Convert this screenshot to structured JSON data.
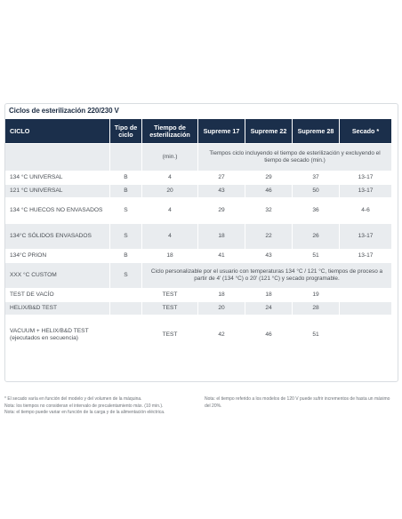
{
  "title": "Ciclos de esterilización 220/230 V",
  "headers": [
    "CICLO",
    "Tipo de ciclo",
    "Tiempo de esterilización",
    "Supreme 17",
    "Supreme 22",
    "Supreme 28",
    "Secado *"
  ],
  "units_row": {
    "min": "(min.)",
    "span_text": "Tiempos ciclo incluyendo el tiempo de esterilización y excluyendo el tiempo de secado (min.)"
  },
  "rows": [
    {
      "ciclo": "134 °C UNIVERSAL",
      "tipo": "B",
      "tiempo": "4",
      "s17": "27",
      "s22": "29",
      "s28": "37",
      "secado": "13-17"
    },
    {
      "ciclo": "121 °C UNIVERSAL",
      "tipo": "B",
      "tiempo": "20",
      "s17": "43",
      "s22": "46",
      "s28": "50",
      "secado": "13-17"
    },
    {
      "ciclo": "134 °C HUECOS NO ENVASADOS",
      "tipo": "S",
      "tiempo": "4",
      "s17": "29",
      "s22": "32",
      "s28": "36",
      "secado": "4-6"
    },
    {
      "ciclo": "134°C SÓLIDOS ENVASADOS",
      "tipo": "S",
      "tiempo": "4",
      "s17": "18",
      "s22": "22",
      "s28": "26",
      "secado": "13-17"
    },
    {
      "ciclo": "134°C PRION",
      "tipo": "B",
      "tiempo": "18",
      "s17": "41",
      "s22": "43",
      "s28": "51",
      "secado": "13-17"
    },
    {
      "ciclo": "XXX °C CUSTOM",
      "tipo": "S",
      "span": "Ciclo personalizable por el usuario con temperaturas 134 °C / 121 °C, tiempos de proceso a partir de 4' (134 °C) o 20' (121 °C) y secado programable."
    },
    {
      "ciclo": "TEST DE VACÍO",
      "tipo": "",
      "tiempo": "TEST",
      "s17": "18",
      "s22": "18",
      "s28": "19",
      "secado": ""
    },
    {
      "ciclo": "HELIX/B&D TEST",
      "tipo": "",
      "tiempo": "TEST",
      "s17": "20",
      "s22": "24",
      "s28": "28",
      "secado": ""
    },
    {
      "ciclo": "VACUUM + HELIX/B&D TEST (ejecutados en secuencia)",
      "tipo": "",
      "tiempo": "TEST",
      "s17": "42",
      "s22": "46",
      "s28": "51",
      "secado": ""
    }
  ],
  "notes_left": [
    "* El secado varía en función del modelo y del volumen de la máquina.",
    "Nota: los tiempos no consideran el intervalo de precalentamiento máx. (10 min.).",
    "Nota: el tiempo puede variar en función de la carga y de la alimentación eléctrica."
  ],
  "notes_right": "Nota: el tiempo referido a los modelos de 120 V puede sufrir incrementos de hasta un máximo del 20%."
}
